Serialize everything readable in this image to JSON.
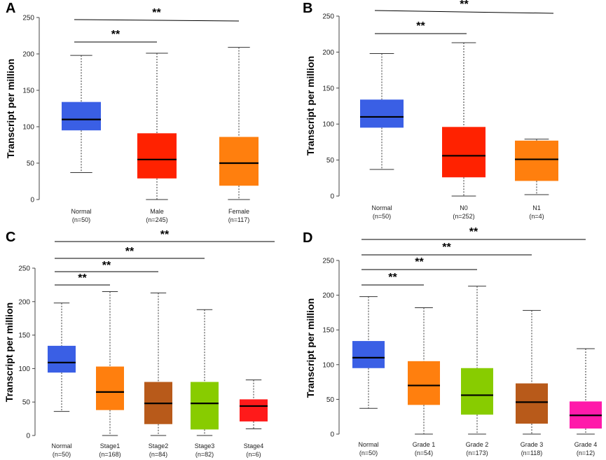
{
  "chart_data": [
    {
      "type": "boxplot",
      "panel_label": "A",
      "ylabel": "Transcript per million",
      "ylim": [
        0,
        250
      ],
      "yticks": [
        "0",
        "50",
        "100",
        "150",
        "200",
        "250"
      ],
      "categories": [
        {
          "name": "Normal",
          "n": "(n=50)",
          "color": "#3a5fe5",
          "min": 37,
          "q1": 95,
          "median": 110,
          "q3": 134,
          "max": 198
        },
        {
          "name": "Male",
          "n": "(n=245)",
          "color": "#ff2200",
          "min": 0,
          "q1": 29,
          "median": 55,
          "q3": 91,
          "max": 201
        },
        {
          "name": "Female",
          "n": "(n=117)",
          "color": "#ff7f0e",
          "min": 0,
          "q1": 19,
          "median": 50,
          "q3": 86,
          "max": 209
        }
      ],
      "significance": [
        {
          "from": 0,
          "to": 1,
          "label": "**"
        },
        {
          "from": 0,
          "to": 2,
          "label": "**"
        }
      ]
    },
    {
      "type": "boxplot",
      "panel_label": "B",
      "ylabel": "Transcript per million",
      "ylim": [
        0,
        250
      ],
      "yticks": [
        "0",
        "50",
        "100",
        "150",
        "200",
        "250"
      ],
      "categories": [
        {
          "name": "Normal",
          "n": "(n=50)",
          "color": "#3a5fe5",
          "min": 37,
          "q1": 95,
          "median": 110,
          "q3": 134,
          "max": 198
        },
        {
          "name": "N0",
          "n": "(n=252)",
          "color": "#ff2200",
          "min": 0,
          "q1": 26,
          "median": 56,
          "q3": 96,
          "max": 213
        },
        {
          "name": "N1",
          "n": "(n=4)",
          "color": "#ff7f0e",
          "min": 2,
          "q1": 21,
          "median": 51,
          "q3": 77,
          "max": 79
        }
      ],
      "significance": [
        {
          "from": 0,
          "to": 1,
          "label": "**"
        },
        {
          "from": 0,
          "to": 2,
          "label": "**"
        }
      ]
    },
    {
      "type": "boxplot",
      "panel_label": "C",
      "ylabel": "Transcript per million",
      "ylim": [
        0,
        250
      ],
      "yticks": [
        "0",
        "50",
        "100",
        "150",
        "200",
        "250"
      ],
      "categories": [
        {
          "name": "Normal",
          "n": "(n=50)",
          "color": "#3a5fe5",
          "min": 36,
          "q1": 94,
          "median": 109,
          "q3": 134,
          "max": 198
        },
        {
          "name": "Stage1",
          "n": "(n=168)",
          "color": "#ff7f0e",
          "min": 0,
          "q1": 38,
          "median": 65,
          "q3": 103,
          "max": 215
        },
        {
          "name": "Stage2",
          "n": "(n=84)",
          "color": "#b85a1a",
          "min": 0,
          "q1": 17,
          "median": 48,
          "q3": 80,
          "max": 213
        },
        {
          "name": "Stage3",
          "n": "(n=82)",
          "color": "#88cc00",
          "min": 0,
          "q1": 9,
          "median": 48,
          "q3": 80,
          "max": 188
        },
        {
          "name": "Stage4",
          "n": "(n=6)",
          "color": "#ff1a1a",
          "min": 10,
          "q1": 21,
          "median": 44,
          "q3": 54,
          "max": 83
        }
      ],
      "significance": [
        {
          "from": 0,
          "to": 1,
          "label": "**"
        },
        {
          "from": 0,
          "to": 2,
          "label": "**"
        },
        {
          "from": 0,
          "to": 3,
          "label": "**"
        },
        {
          "from": 0,
          "to": 4,
          "label": "**"
        }
      ]
    },
    {
      "type": "boxplot",
      "panel_label": "D",
      "ylabel": "Transcript per million",
      "ylim": [
        0,
        250
      ],
      "yticks": [
        "0",
        "50",
        "100",
        "150",
        "200",
        "250"
      ],
      "categories": [
        {
          "name": "Normal",
          "n": "(n=50)",
          "color": "#3a5fe5",
          "min": 37,
          "q1": 95,
          "median": 110,
          "q3": 134,
          "max": 198
        },
        {
          "name": "Grade 1",
          "n": "(n=54)",
          "color": "#ff7f0e",
          "min": 0,
          "q1": 42,
          "median": 70,
          "q3": 105,
          "max": 182
        },
        {
          "name": "Grade 2",
          "n": "(n=173)",
          "color": "#88cc00",
          "min": 0,
          "q1": 28,
          "median": 56,
          "q3": 95,
          "max": 213
        },
        {
          "name": "Grade 3",
          "n": "(n=118)",
          "color": "#b85a1a",
          "min": 0,
          "q1": 15,
          "median": 46,
          "q3": 73,
          "max": 178
        },
        {
          "name": "Grade 4",
          "n": "(n=12)",
          "color": "#ff1aaa",
          "min": 0,
          "q1": 8,
          "median": 27,
          "q3": 47,
          "max": 123
        }
      ],
      "significance": [
        {
          "from": 0,
          "to": 1,
          "label": "**"
        },
        {
          "from": 0,
          "to": 2,
          "label": "**"
        },
        {
          "from": 0,
          "to": 3,
          "label": "**"
        },
        {
          "from": 0,
          "to": 4,
          "label": "**"
        }
      ]
    }
  ]
}
